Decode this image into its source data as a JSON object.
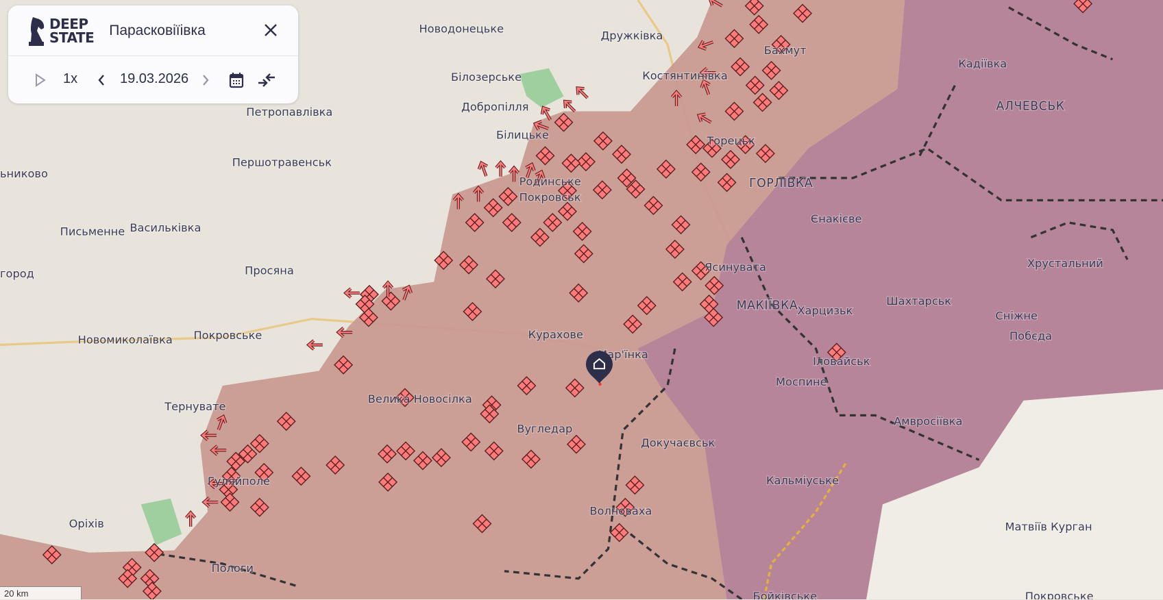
{
  "header": {
    "logo_text_line1": "DEEP",
    "logo_text_line2": "STATE",
    "location_title": "Парасковіїівка"
  },
  "controls": {
    "play_icon": "play-icon",
    "speed": "1x",
    "date": "19.03.2026",
    "prev_icon": "chevron-left-icon",
    "next_icon": "chevron-right-icon",
    "calendar_icon": "calendar-icon",
    "collapse_icon": "collapse-arrows-icon",
    "close_icon": "close-icon"
  },
  "map": {
    "scale_label": "20 km",
    "colors": {
      "land": "#e8e4dc",
      "occupied": "#c99a91",
      "occupied_pre2022": "#b4829a",
      "russia": "#f0ede6",
      "marker": "#ff7b7b",
      "pin": "#2d2e4a"
    },
    "cities": [
      "Новодонецьке",
      "Дружківка",
      "Бахмут",
      "Кадіївка",
      "Білозерське",
      "Костянтинівка",
      "Алчевськ",
      "Добропілля",
      "Петропавлівка",
      "Білицьке",
      "Торецьк",
      "Першотравенськ",
      "Родинське",
      "Горлівка",
      "ьниково",
      "Покровськ",
      "Єнакієве",
      "Письменне",
      "Васильківка",
      "Ясинувата",
      "Хрустальний",
      "Просяна",
      "город",
      "Макіївка",
      "Харцизьк",
      "Шахтарськ",
      "Сніжне",
      "Курахове",
      "Новомиколаївка",
      "Покровське",
      "Мар'їнка",
      "Побєда",
      "Іловайськ",
      "Моспине",
      "Тернувате",
      "Велика Новосілка",
      "Вугледар",
      "Амвросіївка",
      "Докучаєвськ",
      "Гуляйполе",
      "Кальміуське",
      "Волноваха",
      "Оріхів",
      "Матвіїв Курган",
      "Пологи",
      "Бойківське",
      "Покровське"
    ]
  }
}
